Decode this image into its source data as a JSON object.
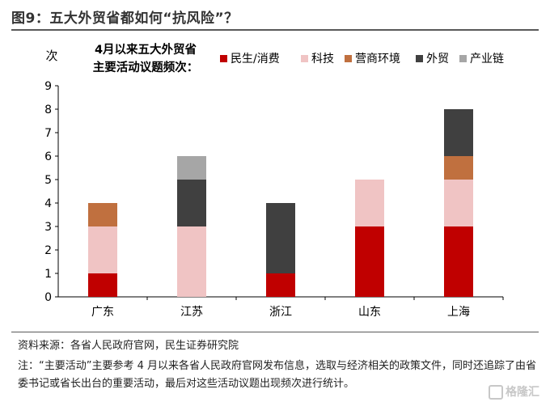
{
  "figure_title": "图9：五大外贸省都如何“抗风险”？",
  "source_text": "资料来源：各省人民政府官网，民生证券研究院",
  "note_text": "注：“主要活动”主要参考 4 月以来各省人民政府官网发布信息，选取与经济相关的政策文件，同时还追踪了由省委书记或省长出台的重要活动，最后对这些活动议题出现频次进行统计。",
  "watermark": "格隆汇",
  "chart_data": {
    "type": "bar",
    "stacked": true,
    "title": "4月以来五大外贸省主要活动议题频次：",
    "title_lines": [
      "4月以来五大外贸省",
      "主要活动议题频次："
    ],
    "ylabel": "次",
    "xlabel": "",
    "ylim": [
      0,
      9
    ],
    "yticks": [
      0,
      1,
      2,
      3,
      4,
      5,
      6,
      7,
      8,
      9
    ],
    "grid": false,
    "legend_position": "top-right",
    "categories": [
      "广东",
      "江苏",
      "浙江",
      "山东",
      "上海"
    ],
    "series": [
      {
        "name": "民生/消费",
        "color": "#c00000",
        "values": [
          1,
          0,
          1,
          3,
          3
        ]
      },
      {
        "name": "科技",
        "color": "#f0c4c4",
        "values": [
          2,
          3,
          0,
          2,
          2
        ]
      },
      {
        "name": "营商环境",
        "color": "#c0703f",
        "values": [
          1,
          0,
          0,
          0,
          1
        ]
      },
      {
        "name": "外贸",
        "color": "#404040",
        "values": [
          0,
          2,
          3,
          0,
          2
        ]
      },
      {
        "name": "产业链",
        "color": "#a6a6a6",
        "values": [
          0,
          1,
          0,
          0,
          0
        ]
      }
    ]
  }
}
